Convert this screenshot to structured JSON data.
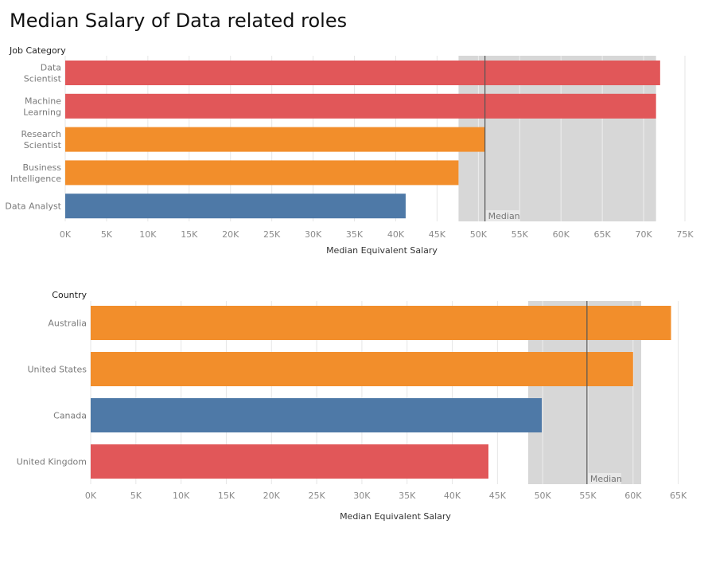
{
  "page": {
    "title": "Median Salary of Data related roles"
  },
  "colors": {
    "red": "#e15759",
    "orange": "#f28e2b",
    "blue": "#4e79a7",
    "band": "#d7d7d7",
    "grid": "#e6e6e6",
    "median_line": "#555555"
  },
  "chart_data": [
    {
      "type": "bar",
      "orientation": "horizontal",
      "title": "",
      "category_header": "Job Category",
      "xlabel": "Median Equivalent Salary",
      "categories": [
        "Data\nScientist",
        "Machine\nLearning",
        "Research\nScientist",
        "Business\nIntelligence",
        "Data Analyst"
      ],
      "values": [
        72000,
        71500,
        50800,
        47600,
        41200
      ],
      "bar_colors": [
        "#e15759",
        "#e15759",
        "#f28e2b",
        "#f28e2b",
        "#4e79a7"
      ],
      "xlim": [
        0,
        75000
      ],
      "xticks": [
        0,
        5000,
        10000,
        15000,
        20000,
        25000,
        30000,
        35000,
        40000,
        45000,
        50000,
        55000,
        60000,
        65000,
        70000,
        75000
      ],
      "xtick_labels": [
        "0K",
        "5K",
        "10K",
        "15K",
        "20K",
        "25K",
        "30K",
        "35K",
        "40K",
        "45K",
        "50K",
        "55K",
        "60K",
        "65K",
        "70K",
        "75K"
      ],
      "reference_line": {
        "label": "Median",
        "value": 50800
      },
      "reference_band": [
        47600,
        71500
      ],
      "grid": true
    },
    {
      "type": "bar",
      "orientation": "horizontal",
      "title": "",
      "category_header": "Country",
      "xlabel": "Median Equivalent Salary",
      "categories": [
        "Australia",
        "United States",
        "Canada",
        "United Kingdom"
      ],
      "values": [
        64200,
        60000,
        49900,
        44000
      ],
      "bar_colors": [
        "#f28e2b",
        "#f28e2b",
        "#4e79a7",
        "#e15759"
      ],
      "xlim": [
        0,
        66000
      ],
      "xticks": [
        0,
        5000,
        10000,
        15000,
        20000,
        25000,
        30000,
        35000,
        40000,
        45000,
        50000,
        55000,
        60000,
        65000
      ],
      "xtick_labels": [
        "0K",
        "5K",
        "10K",
        "15K",
        "20K",
        "25K",
        "30K",
        "35K",
        "40K",
        "45K",
        "50K",
        "55K",
        "60K",
        "65K"
      ],
      "reference_line": {
        "label": "Median",
        "value": 54900
      },
      "reference_band": [
        48400,
        60900
      ],
      "grid": true
    }
  ]
}
